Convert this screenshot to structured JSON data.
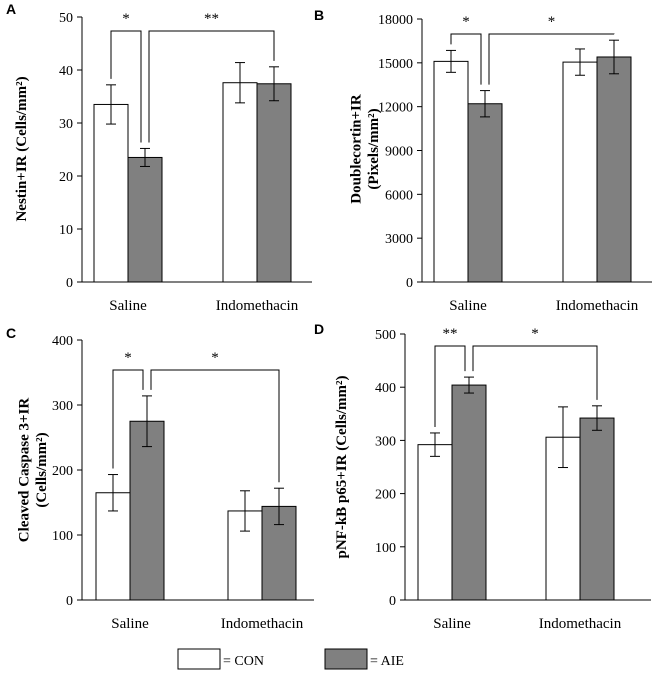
{
  "colors": {
    "con_fill": "#ffffff",
    "aie_fill": "#808080",
    "stroke": "#000000"
  },
  "legend": [
    {
      "label": "= CON",
      "series": "CON"
    },
    {
      "label": "= AIE",
      "series": "AIE"
    }
  ],
  "chart_data": [
    {
      "panel": "A",
      "type": "bar",
      "ylabel": "Nestin+IR (Cells/mm²)",
      "ylim": [
        0,
        50
      ],
      "yticks": [
        0,
        10,
        20,
        30,
        40,
        50
      ],
      "categories": [
        "Saline",
        "Indomethacin"
      ],
      "series": [
        {
          "name": "CON",
          "values": [
            33.5,
            37.6
          ],
          "errors": [
            3.7,
            3.8
          ]
        },
        {
          "name": "AIE",
          "values": [
            23.5,
            37.4
          ],
          "errors": [
            1.7,
            3.2
          ]
        }
      ],
      "annotations": [
        {
          "label": "*",
          "from": [
            0,
            0
          ],
          "to": [
            0,
            1
          ]
        },
        {
          "label": "**",
          "from": [
            0,
            1
          ],
          "to": [
            1,
            1
          ]
        }
      ]
    },
    {
      "panel": "B",
      "type": "bar",
      "ylabel": "Doublecortin+IR (Pixels/mm²)",
      "ylim": [
        0,
        18000
      ],
      "yticks": [
        0,
        3000,
        6000,
        9000,
        12000,
        15000,
        18000
      ],
      "categories": [
        "Saline",
        "Indomethacin"
      ],
      "series": [
        {
          "name": "CON",
          "values": [
            15100,
            15050
          ],
          "errors": [
            750,
            900
          ]
        },
        {
          "name": "AIE",
          "values": [
            12200,
            15400
          ],
          "errors": [
            900,
            1150
          ]
        }
      ],
      "annotations": [
        {
          "label": "*",
          "from": [
            0,
            0
          ],
          "to": [
            0,
            1
          ]
        },
        {
          "label": "*",
          "from": [
            0,
            1
          ],
          "to": [
            1,
            1
          ]
        }
      ]
    },
    {
      "panel": "C",
      "type": "bar",
      "ylabel": "Cleaved Caspase 3+IR (Cells/mm²)",
      "ylim": [
        0,
        400
      ],
      "yticks": [
        0,
        100,
        200,
        300,
        400
      ],
      "categories": [
        "Saline",
        "Indomethacin"
      ],
      "series": [
        {
          "name": "CON",
          "values": [
            165,
            137
          ],
          "errors": [
            28,
            31
          ]
        },
        {
          "name": "AIE",
          "values": [
            275,
            144
          ],
          "errors": [
            39,
            28
          ]
        }
      ],
      "annotations": [
        {
          "label": "*",
          "from": [
            0,
            0
          ],
          "to": [
            0,
            1
          ]
        },
        {
          "label": "*",
          "from": [
            0,
            1
          ],
          "to": [
            1,
            1
          ]
        }
      ]
    },
    {
      "panel": "D",
      "type": "bar",
      "ylabel": "pNF-kB p65+IR (Cells/mm²)",
      "ylim": [
        0,
        500
      ],
      "yticks": [
        0,
        100,
        200,
        300,
        400,
        500
      ],
      "categories": [
        "Saline",
        "Indomethacin"
      ],
      "series": [
        {
          "name": "CON",
          "values": [
            292,
            306
          ],
          "errors": [
            22,
            57
          ]
        },
        {
          "name": "AIE",
          "values": [
            404,
            342
          ],
          "errors": [
            15,
            23
          ]
        }
      ],
      "annotations": [
        {
          "label": "**",
          "from": [
            0,
            0
          ],
          "to": [
            0,
            1
          ]
        },
        {
          "label": "*",
          "from": [
            0,
            1
          ],
          "to": [
            1,
            1
          ]
        }
      ]
    }
  ]
}
